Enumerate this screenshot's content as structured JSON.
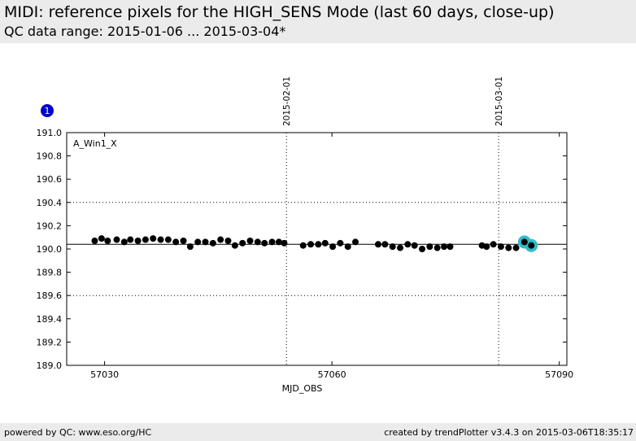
{
  "header": {
    "title": "MIDI: reference pixels for the HIGH_SENS Mode (last 60 days, close-up)",
    "subtitle": "QC data range: 2015-01-06 ... 2015-03-04*"
  },
  "footer": {
    "left": "powered by QC: www.eso.org/HC",
    "right": "created by trendPlotter v3.4.3 on 2015-03-06T18:35:17"
  },
  "colors": {
    "point": "#000000",
    "highlight": "#33bbcc",
    "badge": "#0000cc",
    "ref_line": "#000000",
    "guide": "#000000"
  },
  "chart_data": {
    "type": "scatter",
    "badge": "1",
    "panel_label": "A_Win1_X",
    "xlabel": "MJD_OBS",
    "ylabel": "",
    "xlim": [
      57025,
      57091
    ],
    "ylim": [
      189.0,
      191.0
    ],
    "xticks": [
      57030,
      57060,
      57090
    ],
    "yticks": [
      "191.0",
      "190.8",
      "190.6",
      "190.4",
      "190.2",
      "190.0",
      "189.8",
      "189.6",
      "189.4",
      "189.2",
      "189.0"
    ],
    "dotted_hlines": [
      190.4,
      189.6
    ],
    "reference_line": 190.04,
    "date_markers": [
      {
        "label": "2015-02-01",
        "mjd": 57054.0
      },
      {
        "label": "2015-03-01",
        "mjd": 57082.0
      }
    ],
    "points": [
      {
        "x": 57028.7,
        "y": 190.07
      },
      {
        "x": 57029.6,
        "y": 190.09
      },
      {
        "x": 57030.4,
        "y": 190.07
      },
      {
        "x": 57031.6,
        "y": 190.08
      },
      {
        "x": 57032.6,
        "y": 190.06
      },
      {
        "x": 57033.4,
        "y": 190.08
      },
      {
        "x": 57034.4,
        "y": 190.07
      },
      {
        "x": 57035.4,
        "y": 190.08
      },
      {
        "x": 57036.4,
        "y": 190.09
      },
      {
        "x": 57037.4,
        "y": 190.08
      },
      {
        "x": 57038.4,
        "y": 190.08
      },
      {
        "x": 57039.4,
        "y": 190.06
      },
      {
        "x": 57040.4,
        "y": 190.07
      },
      {
        "x": 57041.3,
        "y": 190.02
      },
      {
        "x": 57042.3,
        "y": 190.06
      },
      {
        "x": 57043.3,
        "y": 190.06
      },
      {
        "x": 57044.3,
        "y": 190.05
      },
      {
        "x": 57045.3,
        "y": 190.08
      },
      {
        "x": 57046.3,
        "y": 190.07
      },
      {
        "x": 57047.2,
        "y": 190.03
      },
      {
        "x": 57048.2,
        "y": 190.05
      },
      {
        "x": 57049.2,
        "y": 190.07
      },
      {
        "x": 57050.2,
        "y": 190.06
      },
      {
        "x": 57051.1,
        "y": 190.05
      },
      {
        "x": 57052.1,
        "y": 190.06
      },
      {
        "x": 57053.0,
        "y": 190.06
      },
      {
        "x": 57053.7,
        "y": 190.05
      },
      {
        "x": 57056.2,
        "y": 190.03
      },
      {
        "x": 57057.2,
        "y": 190.04
      },
      {
        "x": 57058.2,
        "y": 190.04
      },
      {
        "x": 57059.1,
        "y": 190.05
      },
      {
        "x": 57060.1,
        "y": 190.02
      },
      {
        "x": 57061.1,
        "y": 190.05
      },
      {
        "x": 57062.1,
        "y": 190.02
      },
      {
        "x": 57063.1,
        "y": 190.06
      },
      {
        "x": 57066.1,
        "y": 190.04
      },
      {
        "x": 57067.0,
        "y": 190.04
      },
      {
        "x": 57068.0,
        "y": 190.02
      },
      {
        "x": 57069.0,
        "y": 190.01
      },
      {
        "x": 57070.0,
        "y": 190.04
      },
      {
        "x": 57070.9,
        "y": 190.03
      },
      {
        "x": 57071.9,
        "y": 190.0
      },
      {
        "x": 57072.9,
        "y": 190.02
      },
      {
        "x": 57073.9,
        "y": 190.01
      },
      {
        "x": 57074.8,
        "y": 190.02
      },
      {
        "x": 57075.6,
        "y": 190.02
      },
      {
        "x": 57079.8,
        "y": 190.03
      },
      {
        "x": 57080.4,
        "y": 190.02
      },
      {
        "x": 57081.3,
        "y": 190.04
      },
      {
        "x": 57082.3,
        "y": 190.02
      },
      {
        "x": 57083.3,
        "y": 190.01
      },
      {
        "x": 57084.3,
        "y": 190.01
      },
      {
        "x": 57085.4,
        "y": 190.06,
        "highlight": true
      },
      {
        "x": 57086.3,
        "y": 190.03,
        "highlight": true
      }
    ]
  }
}
